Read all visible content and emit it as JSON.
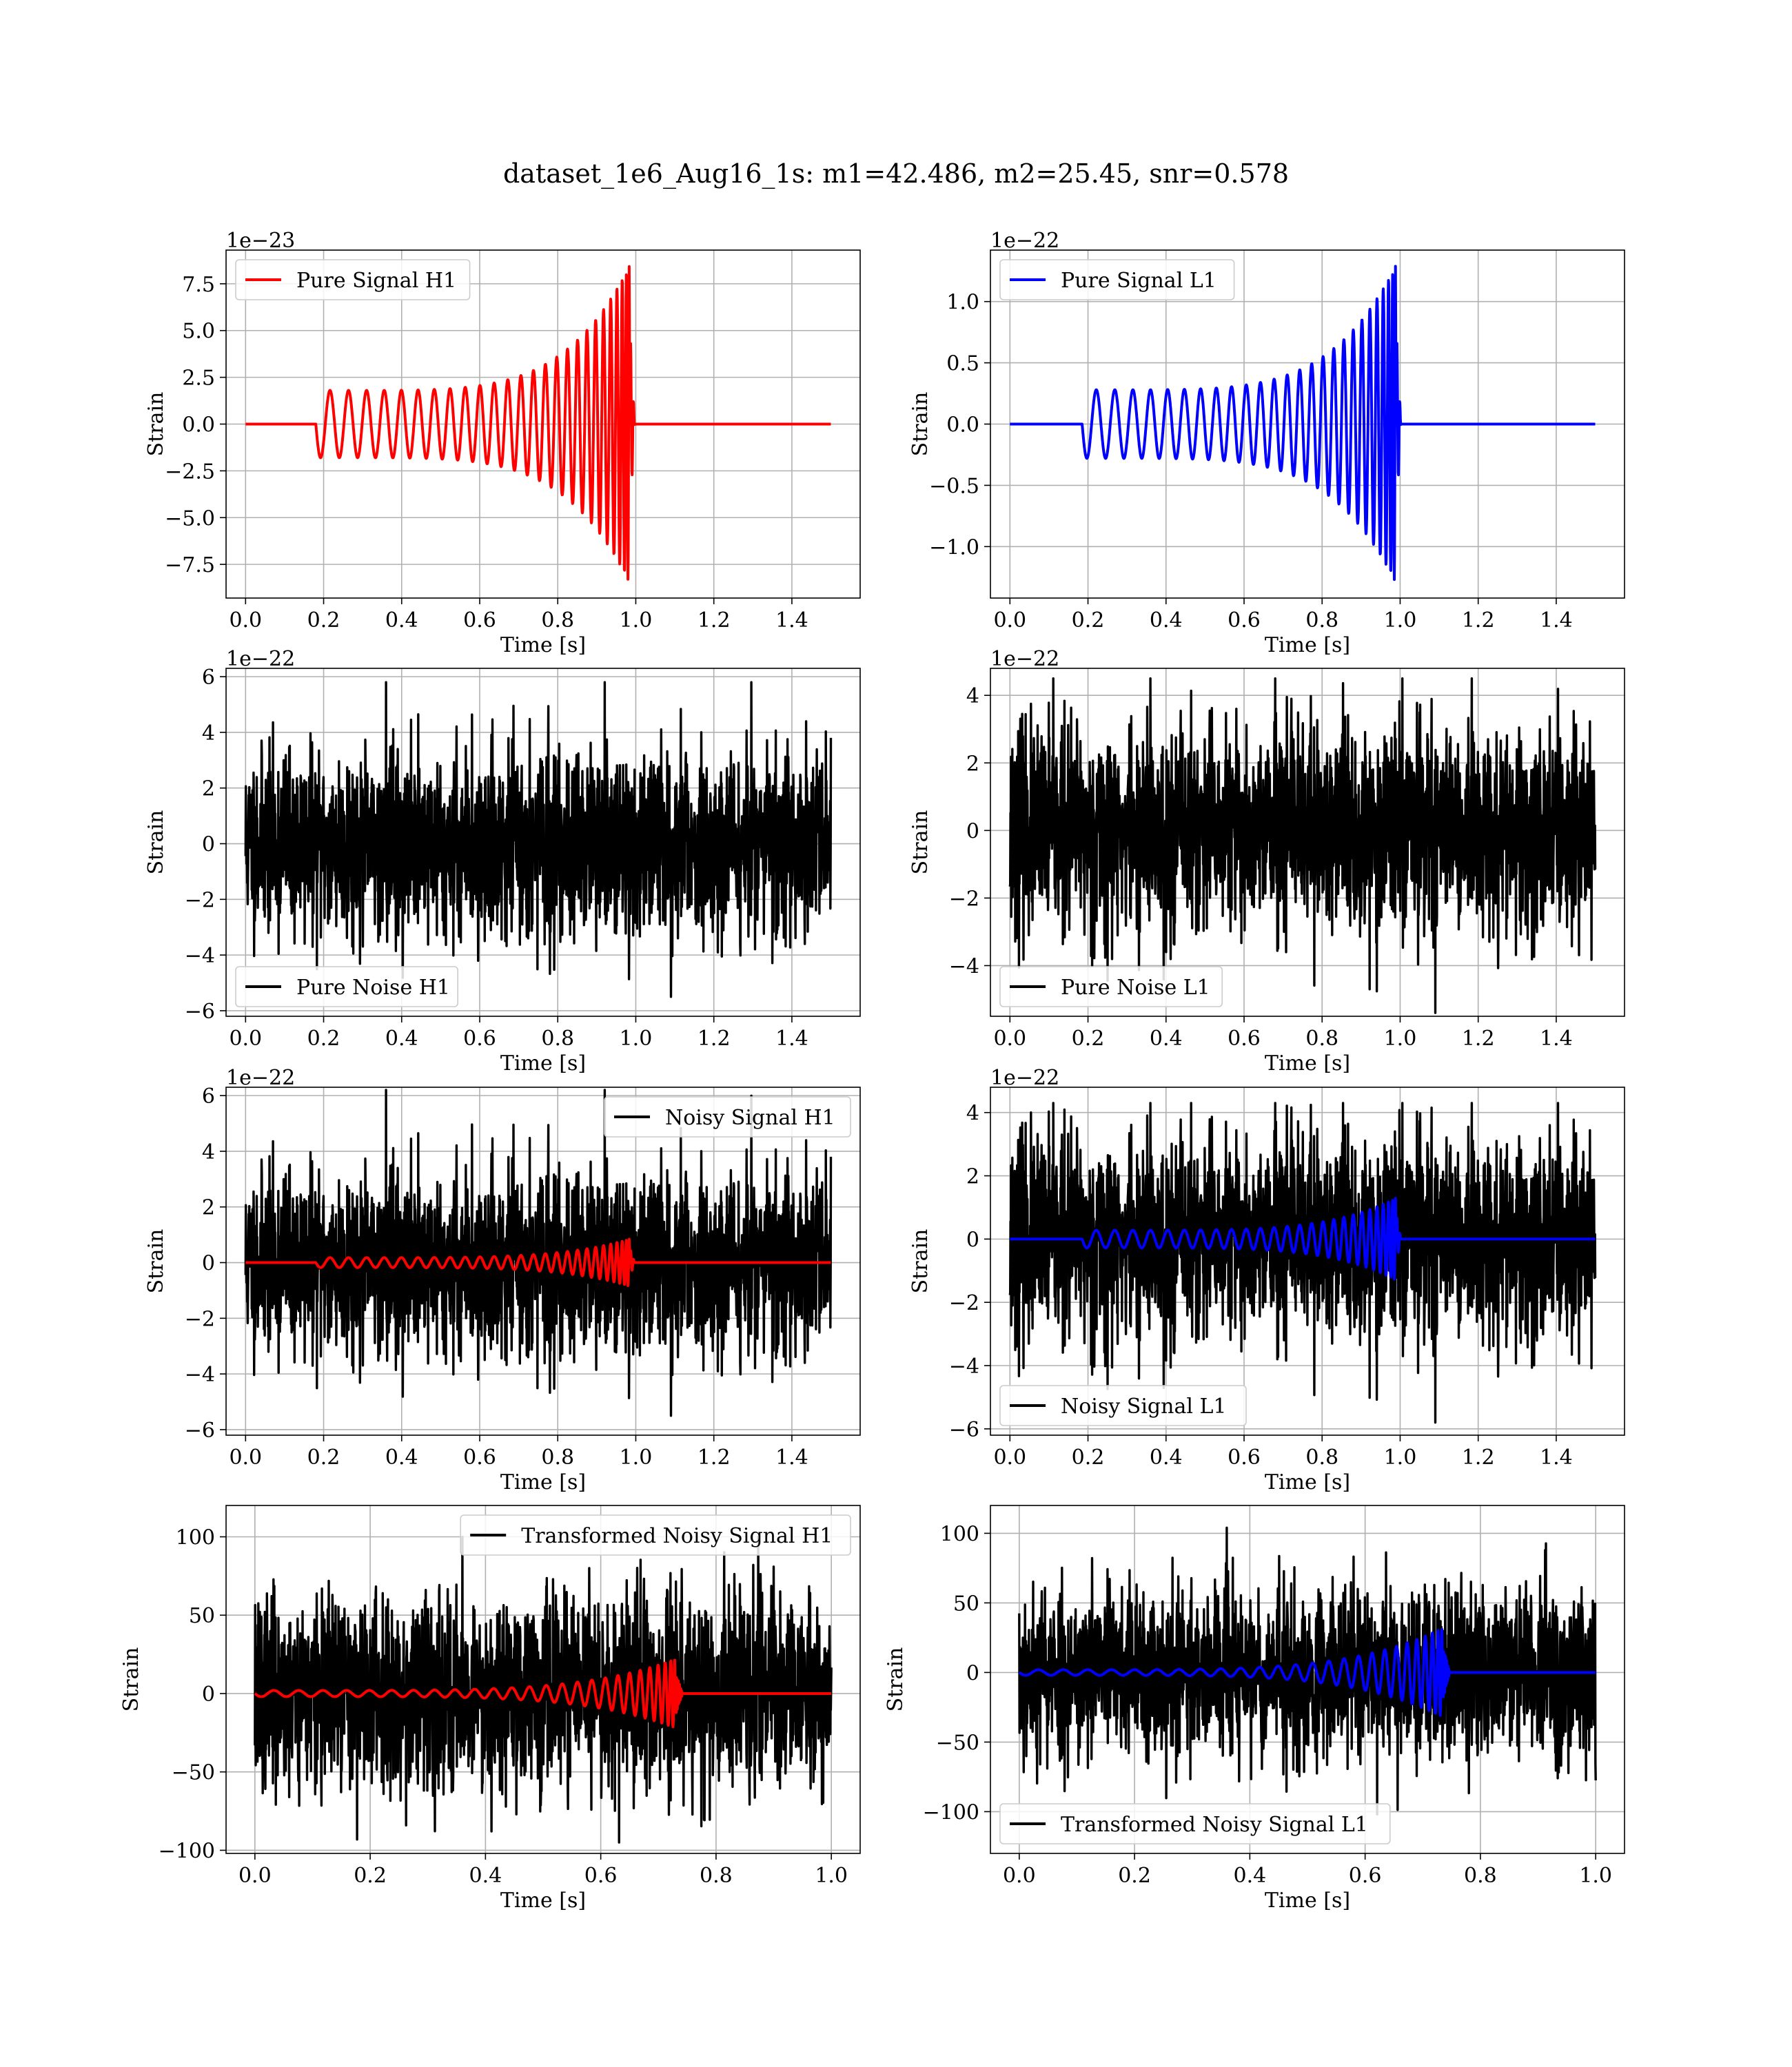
{
  "title": "dataset_1e6_Aug16_1s: m1=42.486, m2=25.45, snr=0.578",
  "colors": {
    "h1": "#ff0000",
    "l1": "#0000ff",
    "noise": "#000000",
    "grid": "#b0b0b0"
  },
  "chart_data": [
    {
      "type": "line",
      "xlabel": "Time [s]",
      "ylabel": "Strain",
      "offset_text": "1e−23",
      "xlim": [
        -0.05,
        1.575
      ],
      "ylim": [
        -9.3,
        9.3
      ],
      "xticks": [
        "0.0",
        "0.2",
        "0.4",
        "0.6",
        "0.8",
        "1.0",
        "1.2",
        "1.4"
      ],
      "yticks": [
        "−7.5",
        "−5.0",
        "−2.5",
        "0.0",
        "2.5",
        "5.0",
        "7.5"
      ],
      "legend_loc": "upper left",
      "series": [
        {
          "name": "Pure Signal H1",
          "color": "#ff0000",
          "kind": "chirp",
          "t0": 0.18,
          "tc": 0.985,
          "t_end": 1.5,
          "amp_start": 1.8,
          "amp_peak": 8.5,
          "cycles": 26
        }
      ]
    },
    {
      "type": "line",
      "xlabel": "Time [s]",
      "ylabel": "Strain",
      "offset_text": "1e−22",
      "xlim": [
        -0.05,
        1.575
      ],
      "ylim": [
        -1.42,
        1.42
      ],
      "xticks": [
        "0.0",
        "0.2",
        "0.4",
        "0.6",
        "0.8",
        "1.0",
        "1.2",
        "1.4"
      ],
      "yticks": [
        "−1.0",
        "−0.5",
        "0.0",
        "0.5",
        "1.0"
      ],
      "legend_loc": "upper left",
      "series": [
        {
          "name": "Pure Signal L1",
          "color": "#0000ff",
          "kind": "chirp",
          "t0": 0.185,
          "tc": 0.99,
          "t_end": 1.5,
          "amp_start": 0.28,
          "amp_peak": 1.3,
          "cycles": 26
        }
      ]
    },
    {
      "type": "line",
      "xlabel": "Time [s]",
      "ylabel": "Strain",
      "offset_text": "1e−22",
      "xlim": [
        -0.05,
        1.575
      ],
      "ylim": [
        -6.2,
        6.3
      ],
      "xticks": [
        "0.0",
        "0.2",
        "0.4",
        "0.6",
        "0.8",
        "1.0",
        "1.2",
        "1.4"
      ],
      "yticks": [
        "−6",
        "−4",
        "−2",
        "0",
        "2",
        "4",
        "6"
      ],
      "legend_loc": "lower left",
      "series": [
        {
          "name": "Pure Noise H1",
          "color": "#000000",
          "kind": "noise",
          "t_end": 1.5,
          "sigma": 1.6,
          "peak_max": 5.8,
          "peak_min": -5.5,
          "seed": 11
        }
      ]
    },
    {
      "type": "line",
      "xlabel": "Time [s]",
      "ylabel": "Strain",
      "offset_text": "1e−22",
      "xlim": [
        -0.05,
        1.575
      ],
      "ylim": [
        -5.5,
        4.8
      ],
      "xticks": [
        "0.0",
        "0.2",
        "0.4",
        "0.6",
        "0.8",
        "1.0",
        "1.2",
        "1.4"
      ],
      "yticks": [
        "−4",
        "−2",
        "0",
        "2",
        "4"
      ],
      "legend_loc": "lower left",
      "series": [
        {
          "name": "Pure Noise L1",
          "color": "#000000",
          "kind": "noise",
          "t_end": 1.5,
          "sigma": 1.5,
          "peak_max": 4.5,
          "peak_min": -5.4,
          "seed": 23
        }
      ]
    },
    {
      "type": "line",
      "xlabel": "Time [s]",
      "ylabel": "Strain",
      "offset_text": "1e−22",
      "xlim": [
        -0.05,
        1.575
      ],
      "ylim": [
        -6.2,
        6.3
      ],
      "xticks": [
        "0.0",
        "0.2",
        "0.4",
        "0.6",
        "0.8",
        "1.0",
        "1.2",
        "1.4"
      ],
      "yticks": [
        "−6",
        "−4",
        "−2",
        "0",
        "2",
        "4",
        "6"
      ],
      "legend_loc": "upper right",
      "series": [
        {
          "name": "Noisy Signal H1",
          "color": "#000000",
          "kind": "noise",
          "t_end": 1.5,
          "sigma": 1.6,
          "peak_max": 6.2,
          "peak_min": -5.5,
          "seed": 11
        },
        {
          "color": "#ff0000",
          "kind": "chirp",
          "t0": 0.18,
          "tc": 0.985,
          "t_end": 1.5,
          "amp_start": 0.18,
          "amp_peak": 0.85,
          "cycles": 26
        }
      ]
    },
    {
      "type": "line",
      "xlabel": "Time [s]",
      "ylabel": "Strain",
      "offset_text": "1e−22",
      "xlim": [
        -0.05,
        1.575
      ],
      "ylim": [
        -6.2,
        4.8
      ],
      "xticks": [
        "0.0",
        "0.2",
        "0.4",
        "0.6",
        "0.8",
        "1.0",
        "1.2",
        "1.4"
      ],
      "yticks": [
        "−6",
        "−4",
        "−2",
        "0",
        "2",
        "4"
      ],
      "legend_loc": "lower left",
      "series": [
        {
          "name": "Noisy Signal L1",
          "color": "#000000",
          "kind": "noise",
          "t_end": 1.5,
          "sigma": 1.6,
          "peak_max": 4.3,
          "peak_min": -5.8,
          "seed": 23
        },
        {
          "color": "#0000ff",
          "kind": "chirp",
          "t0": 0.185,
          "tc": 0.99,
          "t_end": 1.5,
          "amp_start": 0.28,
          "amp_peak": 1.3,
          "cycles": 26
        }
      ]
    },
    {
      "type": "line",
      "xlabel": "Time [s]",
      "ylabel": "Strain",
      "offset_text": "",
      "xlim": [
        -0.05,
        1.05
      ],
      "ylim": [
        -102,
        120
      ],
      "xticks": [
        "0.0",
        "0.2",
        "0.4",
        "0.6",
        "0.8",
        "1.0"
      ],
      "yticks": [
        "−100",
        "−50",
        "0",
        "50",
        "100"
      ],
      "legend_loc": "upper right",
      "series": [
        {
          "name": "Transformed Noisy Signal H1",
          "color": "#000000",
          "kind": "noise",
          "t_end": 1.0,
          "sigma": 30,
          "peak_max": 100,
          "peak_min": -95,
          "seed": 37
        },
        {
          "color": "#ff0000",
          "kind": "chirp",
          "t0": 0.0,
          "tc": 0.73,
          "t_end": 1.0,
          "amp_start": 2,
          "amp_peak": 22,
          "cycles": 26
        }
      ]
    },
    {
      "type": "line",
      "xlabel": "Time [s]",
      "ylabel": "Strain",
      "offset_text": "",
      "xlim": [
        -0.05,
        1.05
      ],
      "ylim": [
        -130,
        120
      ],
      "xticks": [
        "0.0",
        "0.2",
        "0.4",
        "0.6",
        "0.8",
        "1.0"
      ],
      "yticks": [
        "−100",
        "−50",
        "0",
        "50",
        "100"
      ],
      "legend_loc": "lower left",
      "series": [
        {
          "name": "Transformed Noisy Signal L1",
          "color": "#000000",
          "kind": "noise",
          "t_end": 1.0,
          "sigma": 30,
          "peak_max": 104,
          "peak_min": -102,
          "seed": 53
        },
        {
          "color": "#0000ff",
          "kind": "chirp",
          "t0": 0.0,
          "tc": 0.735,
          "t_end": 1.0,
          "amp_start": 2,
          "amp_peak": 32,
          "cycles": 26
        }
      ]
    }
  ]
}
